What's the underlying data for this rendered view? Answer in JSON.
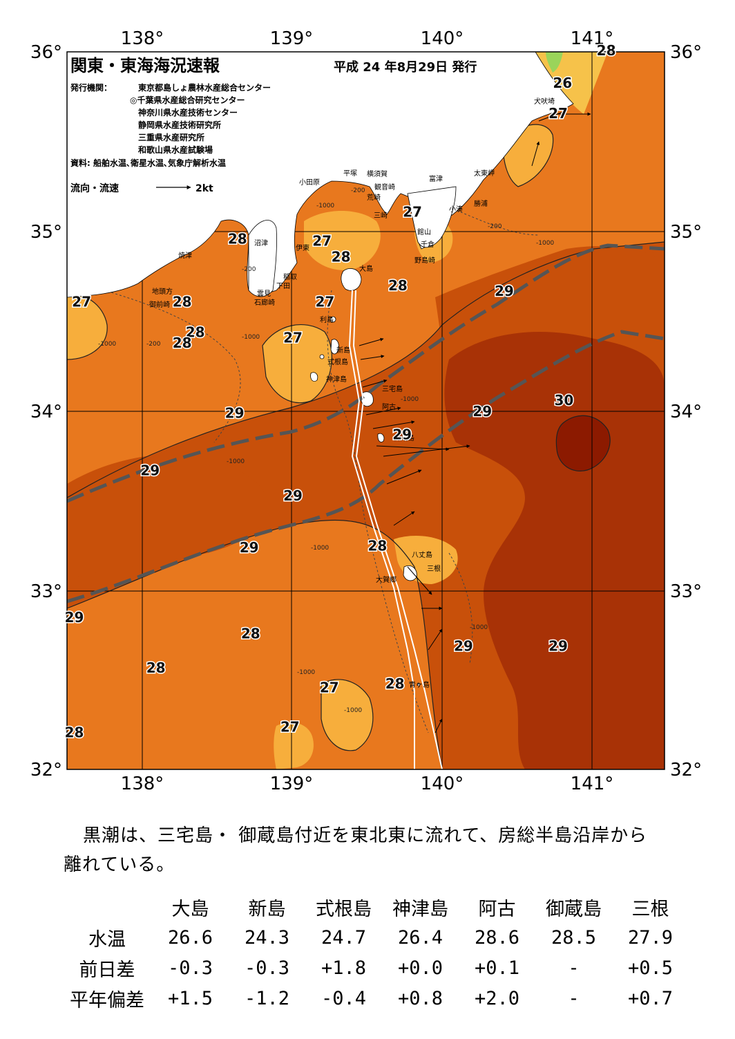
{
  "map": {
    "title": "関東・東海海況速報",
    "issue_date": "平成 24 年8月29日 発行",
    "publisher_label": "発行機関：",
    "publishers": [
      "東京都島しょ農林水産総合センター",
      "◎千葉県水産総合研究センター",
      "神奈川県水産技術センター",
      "静岡県水産技術研究所",
      "三重県水産研究所",
      "和歌山県水産試験場"
    ],
    "source": "資料: 船舶水温､衛星水温､気象庁解析水温",
    "current_legend_label": "流向・流速",
    "current_legend_scale": "2kt",
    "lon_ticks": [
      "138°",
      "139°",
      "140°",
      "141°"
    ],
    "lat_ticks": [
      "36°",
      "35°",
      "34°",
      "33°",
      "32°"
    ],
    "lon_range": [
      137.45,
      141.55
    ],
    "lat_range": [
      32.0,
      36.0
    ],
    "place_names": [
      "小田原",
      "平塚",
      "横須賀",
      "観音崎",
      "富津",
      "荒崎",
      "三崎",
      "館山",
      "千倉",
      "野島崎",
      "犬吠埼",
      "太東岬",
      "勝浦",
      "小湊",
      "沼津",
      "焼津",
      "伊東",
      "稲取",
      "下田",
      "雲見",
      "石廊崎",
      "地頭方",
      "御前崎",
      "大島",
      "利島",
      "新島",
      "式根島",
      "神津島",
      "三宅島",
      "阿古",
      "御蔵島",
      "八丈島",
      "三根",
      "大賀郷",
      "青ヶ島"
    ],
    "depth_labels": [
      "-200",
      "-1000"
    ],
    "temperature_labels": [
      {
        "text": "26",
        "lon": 140.85,
        "lat": 35.8
      },
      {
        "text": "27",
        "lon": 140.82,
        "lat": 35.63
      },
      {
        "text": "28",
        "lon": 141.15,
        "lat": 35.98
      },
      {
        "text": "27",
        "lon": 139.82,
        "lat": 35.08
      },
      {
        "text": "27",
        "lon": 139.2,
        "lat": 34.92
      },
      {
        "text": "28",
        "lon": 138.62,
        "lat": 34.93
      },
      {
        "text": "28",
        "lon": 139.33,
        "lat": 34.83
      },
      {
        "text": "28",
        "lon": 139.72,
        "lat": 34.67
      },
      {
        "text": "29",
        "lon": 140.45,
        "lat": 34.64
      },
      {
        "text": "27",
        "lon": 137.55,
        "lat": 34.58
      },
      {
        "text": "28",
        "lon": 138.24,
        "lat": 34.58
      },
      {
        "text": "27",
        "lon": 139.22,
        "lat": 34.58
      },
      {
        "text": "28",
        "lon": 138.33,
        "lat": 34.41
      },
      {
        "text": "28",
        "lon": 138.24,
        "lat": 34.35
      },
      {
        "text": "27",
        "lon": 139.0,
        "lat": 34.38
      },
      {
        "text": "29",
        "lon": 138.6,
        "lat": 33.96
      },
      {
        "text": "29",
        "lon": 140.3,
        "lat": 33.97
      },
      {
        "text": "30",
        "lon": 140.86,
        "lat": 34.03
      },
      {
        "text": "29",
        "lon": 139.75,
        "lat": 33.84
      },
      {
        "text": "29",
        "lon": 138.02,
        "lat": 33.64
      },
      {
        "text": "29",
        "lon": 139.0,
        "lat": 33.5
      },
      {
        "text": "29",
        "lon": 138.7,
        "lat": 33.21
      },
      {
        "text": "28",
        "lon": 139.58,
        "lat": 33.22
      },
      {
        "text": "29",
        "lon": 137.5,
        "lat": 32.82
      },
      {
        "text": "28",
        "lon": 138.71,
        "lat": 32.73
      },
      {
        "text": "29",
        "lon": 140.17,
        "lat": 32.66
      },
      {
        "text": "29",
        "lon": 140.82,
        "lat": 32.66
      },
      {
        "text": "28",
        "lon": 138.06,
        "lat": 32.54
      },
      {
        "text": "27",
        "lon": 139.25,
        "lat": 32.43
      },
      {
        "text": "28",
        "lon": 139.7,
        "lat": 32.45
      },
      {
        "text": "27",
        "lon": 138.98,
        "lat": 32.21
      },
      {
        "text": "28",
        "lon": 137.5,
        "lat": 32.18
      }
    ]
  },
  "summary": {
    "line1": "黒潮は、三宅島・ 御蔵島付近を東北東に流れて、房総半島沿岸から",
    "line2": "離れている。"
  },
  "table": {
    "columns": [
      "大島",
      "新島",
      "式根島",
      "神津島",
      "阿古",
      "御蔵島",
      "三根"
    ],
    "rows": [
      {
        "label": "水温",
        "values": [
          "26.6",
          "24.3",
          "24.7",
          "26.4",
          "28.6",
          "28.5",
          "27.9"
        ]
      },
      {
        "label": "前日差",
        "values": [
          "-0.3",
          "-0.3",
          "+1.8",
          "+0.0",
          "+0.1",
          "-",
          "+0.5"
        ]
      },
      {
        "label": "平年偏差",
        "values": [
          "+1.5",
          "-1.2",
          "-0.4",
          "+0.8",
          "+2.0",
          "-",
          "+0.7"
        ]
      }
    ]
  },
  "colors": {
    "t26": "#f6c24a",
    "t27": "#f7ae3c",
    "t28": "#e8781e",
    "t29": "#c8500a",
    "t30": "#8c1a00",
    "land": "#ffffff",
    "kuroshio_axis": "#555555",
    "ship_track": "#ffffff"
  }
}
